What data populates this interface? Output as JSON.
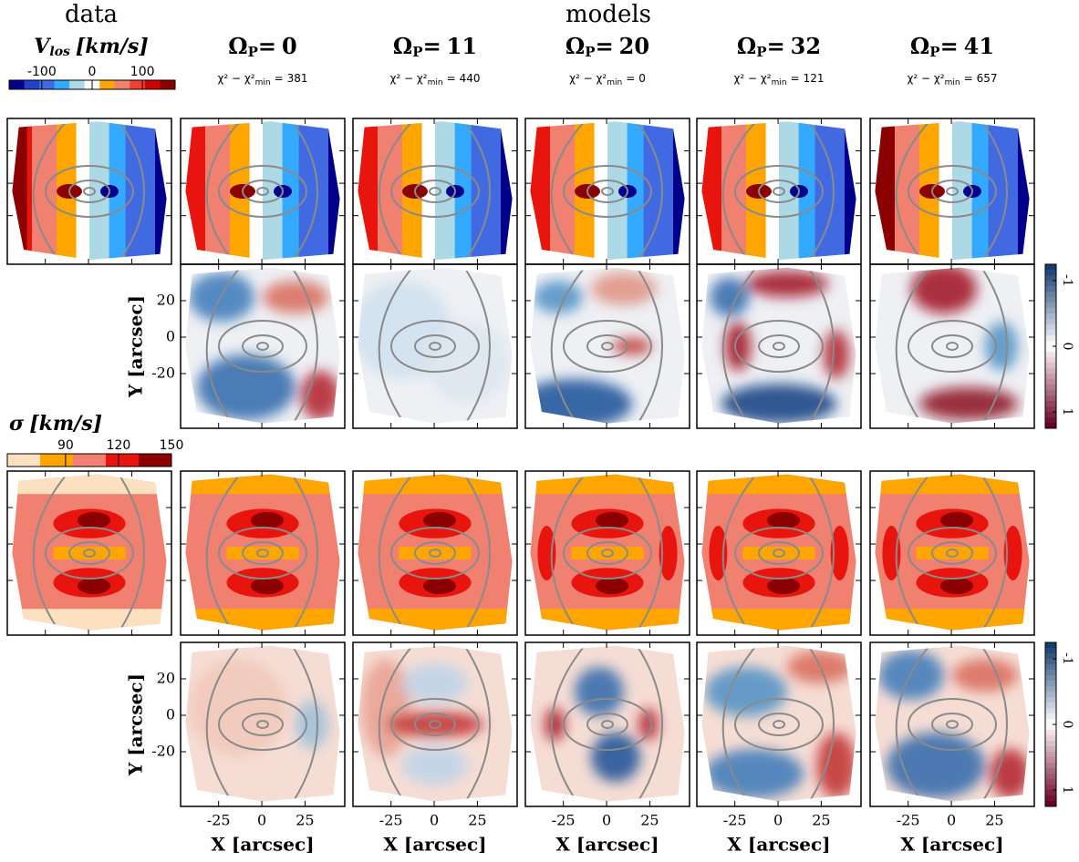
{
  "headers": {
    "data": "data",
    "models": "models"
  },
  "labels": {
    "omega": "Ω",
    "omega_sub": "P",
    "equals": "=",
    "chi_main": "χ² − χ²",
    "chi_sub": "min"
  },
  "models": [
    {
      "omega": 0,
      "chi2": 381
    },
    {
      "omega": 11,
      "chi2": 440
    },
    {
      "omega": 20,
      "chi2": 0
    },
    {
      "omega": 32,
      "chi2": 121
    },
    {
      "omega": 41,
      "chi2": 657
    }
  ],
  "velocity_colorbar": {
    "label": "V",
    "label_sub": "los",
    "unit": "[km/s]",
    "ticks": [
      -100,
      0,
      100
    ],
    "lim": [
      -165,
      165
    ],
    "colors": [
      "#00008b",
      "#2040c8",
      "#4169e1",
      "#33aaff",
      "#add8e6",
      "#ffffff",
      "#ffa500",
      "#f08070",
      "#f04030",
      "#d00000",
      "#8b0000"
    ]
  },
  "sigma_colorbar": {
    "label": "σ",
    "unit": "[km/s]",
    "ticks": [
      90,
      120,
      150
    ],
    "lim": [
      57,
      150
    ],
    "colors": [
      "#fde0c0",
      "#ffa500",
      "#f08070",
      "#e8150f",
      "#8b0000"
    ]
  },
  "residual_colorbar": {
    "ticks": [
      -1,
      0,
      1
    ],
    "lim": [
      -1.25,
      1.25
    ]
  },
  "axes": {
    "xlabel": "X [arcsec]",
    "ylabel": "Y [arcsec]",
    "xticks": [
      -25,
      0,
      25
    ],
    "yticks": [
      -20,
      0,
      20
    ],
    "xlim": [
      -47,
      48
    ],
    "ylim": [
      -50,
      40
    ]
  }
}
